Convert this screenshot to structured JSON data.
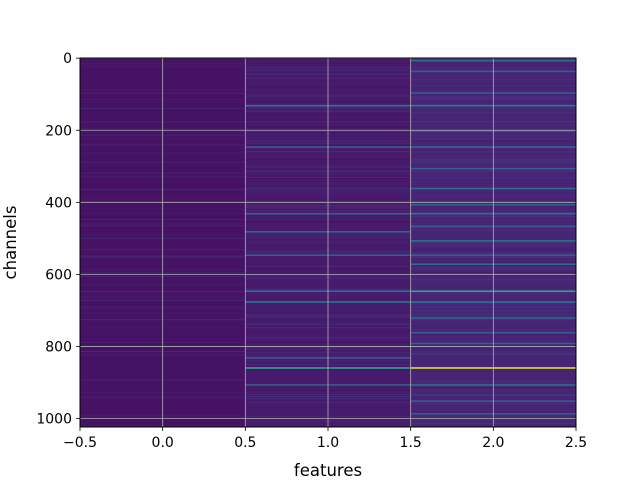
{
  "chart_data": {
    "type": "heatmap",
    "title": "",
    "xlabel": "features",
    "ylabel": "channels",
    "xlim": [
      -0.5,
      2.5
    ],
    "ylim": [
      1023.5,
      -0.5
    ],
    "y_inverted": true,
    "xticks": [
      -0.5,
      0.0,
      0.5,
      1.0,
      1.5,
      2.0,
      2.5
    ],
    "xtick_labels": [
      "−0.5",
      "0.0",
      "0.5",
      "1.0",
      "1.5",
      "2.0",
      "2.5"
    ],
    "yticks": [
      0,
      200,
      400,
      600,
      800,
      1000
    ],
    "ytick_labels": [
      "0",
      "200",
      "400",
      "600",
      "800",
      "1000"
    ],
    "grid": true,
    "colormap": "viridis",
    "shape": {
      "rows": 1024,
      "columns": 3
    },
    "colormap_stops": [
      "#440154",
      "#482878",
      "#3e4989",
      "#31688e",
      "#26828e",
      "#1f9e89",
      "#35b779",
      "#6ece58",
      "#b5de2b",
      "#fde725"
    ],
    "columns": [
      {
        "feature": 0,
        "background_value": 0.05,
        "bright_rows": []
      },
      {
        "feature": 1,
        "background_value": 0.07,
        "bright_rows": [
          {
            "channel": 130,
            "value": 0.42
          },
          {
            "channel": 245,
            "value": 0.3
          },
          {
            "channel": 430,
            "value": 0.32
          },
          {
            "channel": 480,
            "value": 0.3
          },
          {
            "channel": 545,
            "value": 0.3
          },
          {
            "channel": 645,
            "value": 0.35
          },
          {
            "channel": 675,
            "value": 0.4
          },
          {
            "channel": 830,
            "value": 0.3
          },
          {
            "channel": 858,
            "value": 0.6
          },
          {
            "channel": 905,
            "value": 0.3
          }
        ]
      },
      {
        "feature": 2,
        "background_value": 0.1,
        "bright_rows": [
          {
            "channel": 5,
            "value": 0.35
          },
          {
            "channel": 35,
            "value": 0.3
          },
          {
            "channel": 95,
            "value": 0.3
          },
          {
            "channel": 130,
            "value": 0.45
          },
          {
            "channel": 200,
            "value": 0.3
          },
          {
            "channel": 245,
            "value": 0.35
          },
          {
            "channel": 305,
            "value": 0.3
          },
          {
            "channel": 360,
            "value": 0.35
          },
          {
            "channel": 405,
            "value": 0.3
          },
          {
            "channel": 430,
            "value": 0.35
          },
          {
            "channel": 465,
            "value": 0.3
          },
          {
            "channel": 505,
            "value": 0.35
          },
          {
            "channel": 545,
            "value": 0.3
          },
          {
            "channel": 570,
            "value": 0.35
          },
          {
            "channel": 645,
            "value": 0.6
          },
          {
            "channel": 675,
            "value": 0.4
          },
          {
            "channel": 720,
            "value": 0.3
          },
          {
            "channel": 760,
            "value": 0.3
          },
          {
            "channel": 790,
            "value": 0.3
          },
          {
            "channel": 858,
            "value": 0.95
          },
          {
            "channel": 905,
            "value": 0.35
          },
          {
            "channel": 950,
            "value": 0.3
          },
          {
            "channel": 985,
            "value": 0.3
          }
        ]
      }
    ]
  }
}
